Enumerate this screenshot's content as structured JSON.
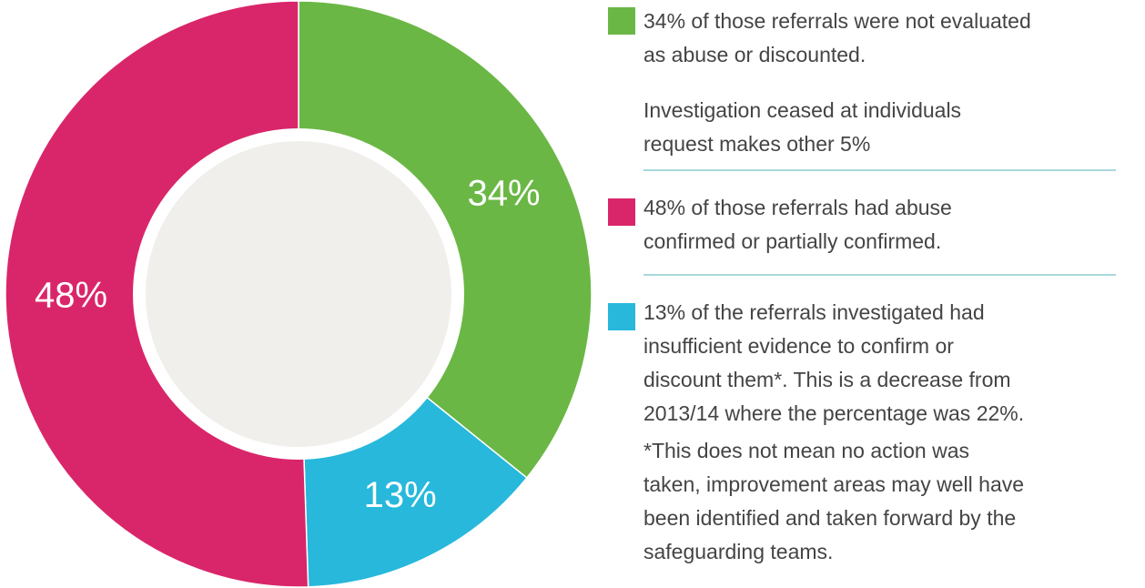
{
  "chart_data": {
    "type": "pie",
    "donut": true,
    "values": [
      34,
      13,
      48
    ],
    "value_labels": [
      "34%",
      "13%",
      "48%"
    ],
    "colors": [
      "#6ab745",
      "#27b8dc",
      "#d9266a"
    ],
    "descriptions": [
      [
        "34% of those referrals were not evaluated",
        "as abuse or discounted."
      ],
      [
        "13% of the referrals investigated had",
        "insufficient evidence to confirm or",
        "discount them*. This is a decrease from",
        "2013/14 where the percentage was 22%."
      ],
      [
        "48% of those referrals had abuse",
        "confirmed or partially confirmed."
      ]
    ],
    "notes": [
      [
        "Investigation ceased at individuals",
        "request makes other 5%"
      ],
      [
        "*This does not mean no action was",
        "taken, improvement areas may well have",
        "been identified and taken forward by the",
        "safeguarding teams."
      ]
    ]
  }
}
